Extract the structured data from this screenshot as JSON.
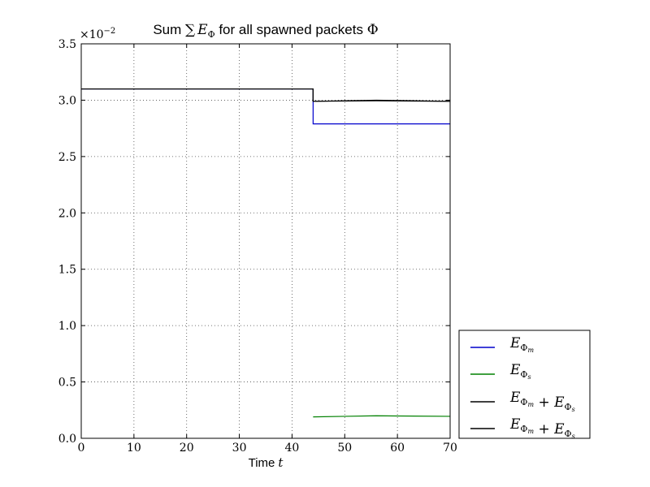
{
  "chart_data": {
    "type": "line",
    "title": "Sum ∑ E_Φ for all spawned packets Φ",
    "title_parts": {
      "pre": "Sum ",
      "sum_symbol": "∑",
      "var": "E",
      "sub": "Φ",
      "post": " for all spawned packets ",
      "end": "Φ"
    },
    "xlabel": "Time",
    "xlabel_var": "t",
    "ylabel": "",
    "y_multiplier": "×10",
    "y_multiplier_exp": "−2",
    "xlim": [
      0,
      70
    ],
    "ylim": [
      0.0,
      3.5
    ],
    "x_ticks": [
      0,
      10,
      20,
      30,
      40,
      50,
      60,
      70
    ],
    "x_tick_labels": [
      "0",
      "10",
      "20",
      "30",
      "40",
      "50",
      "60",
      "70"
    ],
    "y_ticks": [
      0.0,
      0.5,
      1.0,
      1.5,
      2.0,
      2.5,
      3.0,
      3.5
    ],
    "y_tick_labels": [
      "0.0",
      "0.5",
      "1.0",
      "1.5",
      "2.0",
      "2.5",
      "3.0",
      "3.5"
    ],
    "grid": true,
    "legend_placement": "outside-lower-right",
    "series": [
      {
        "name": "E_Φm",
        "label_parts": [
          "E",
          "Φ",
          "m"
        ],
        "color": "#0000cc",
        "points": [
          [
            0,
            3.1
          ],
          [
            44,
            3.1
          ],
          [
            44,
            2.79
          ],
          [
            50,
            2.79
          ],
          [
            60,
            2.79
          ],
          [
            70,
            2.79
          ]
        ]
      },
      {
        "name": "E_Φs",
        "label_parts": [
          "E",
          "Φ",
          "s"
        ],
        "color": "#008000",
        "points": [
          [
            44,
            0.19
          ],
          [
            50,
            0.195
          ],
          [
            56,
            0.2
          ],
          [
            60,
            0.198
          ],
          [
            70,
            0.195
          ]
        ]
      },
      {
        "name": "E_Φm + E_Φs",
        "label_parts": [
          "E",
          "Φ",
          "m",
          "E",
          "Φ",
          "s"
        ],
        "color": "#000000",
        "points": [
          [
            0,
            3.1
          ],
          [
            44,
            3.1
          ],
          [
            44,
            2.99
          ],
          [
            56,
            3.0
          ],
          [
            70,
            2.99
          ]
        ]
      },
      {
        "name": "E_Φm + E_Φs",
        "label_parts": [
          "E",
          "Φ",
          "m",
          "E",
          "Φ",
          "s"
        ],
        "color": "#000000",
        "points": [
          [
            0,
            3.1
          ],
          [
            44,
            3.1
          ],
          [
            44,
            2.99
          ],
          [
            56,
            2.995
          ],
          [
            70,
            2.99
          ]
        ]
      }
    ]
  }
}
